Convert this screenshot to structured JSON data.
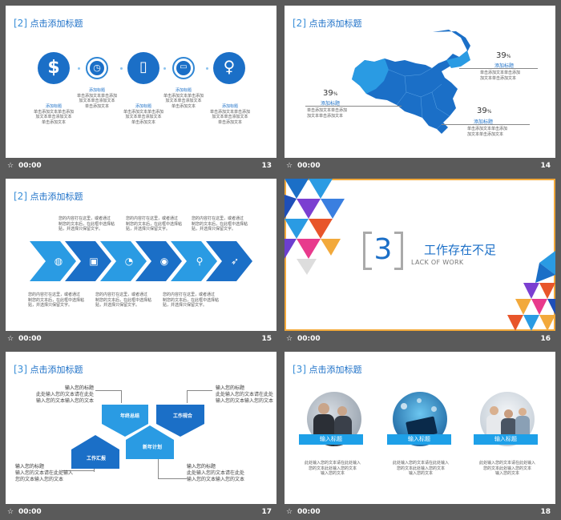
{
  "slides": [
    {
      "number": "13",
      "time": "00:00",
      "title_bracket": "[2]",
      "title_text": "点击添加标题",
      "icons": [
        "dollar-icon",
        "clock-icon",
        "phone-icon",
        "monitor-icon",
        "lightbulb-icon"
      ],
      "item_title": "添加标题",
      "item_text_1": "单击添加文本单击添加",
      "item_text_2": "加文本单击添加文本",
      "item_text_3": "单击添加文本"
    },
    {
      "number": "14",
      "time": "00:00",
      "title_bracket": "[2]",
      "title_text": "点击添加标题",
      "map_color": "#1b6fc7",
      "callouts": [
        {
          "value": "39",
          "unit": "%",
          "label": "添加标题",
          "text_1": "单击添加文本单击添加",
          "text_2": "加文本单击添加文本"
        },
        {
          "value": "39",
          "unit": "%",
          "label": "添加标题",
          "text_1": "单击添加文本单击添加",
          "text_2": "加文本单击添加文本"
        },
        {
          "value": "39",
          "unit": "%",
          "label": "添加标题",
          "text_1": "单击添加文本单击添加",
          "text_2": "加文本单击添加文本"
        }
      ]
    },
    {
      "number": "15",
      "time": "00:00",
      "title_bracket": "[2]",
      "title_text": "点击添加标题",
      "icons": [
        "globe-icon",
        "lock-icon",
        "timer-icon",
        "pin-icon",
        "search-icon",
        "rocket-icon"
      ],
      "para_1": "您的内容打在这里，或者通过",
      "para_2": "制您的文本后，在此框中选择粘",
      "para_3": "贴，并选择只保留文字。"
    },
    {
      "number": "16",
      "time": "00:00",
      "section_number": "3",
      "section_title": "工作存在不足",
      "section_subtitle": "LACK OF WORK"
    },
    {
      "number": "17",
      "time": "00:00",
      "title_bracket": "[3]",
      "title_text": "点击添加标题",
      "shapes": [
        "年终总结",
        "工作规合",
        "工作汇报",
        "新年计划"
      ],
      "callout_title": "输入您的标题",
      "callout_text_1": "此处输入您的文本请在此处",
      "callout_text_2": "输入您的文本输入您的文本",
      "callout_text_3": "输入您的文本请在此处输入",
      "callout_text_4": "您的文本输入您的文本"
    },
    {
      "number": "18",
      "time": "00:00",
      "title_bracket": "[3]",
      "title_text": "点击添加标题",
      "cards": [
        {
          "label": "输入标题",
          "text_1": "此处输入您的文本请在此处输入",
          "text_2": "您的文本此处输入您的文本",
          "text_3": "输入您的文本"
        },
        {
          "label": "输入标题",
          "text_1": "此处输入您的文本请在此处输入",
          "text_2": "您的文本此处输入您的文本",
          "text_3": "输入您的文本"
        },
        {
          "label": "输入标题",
          "text_1": "此处输入您的文本请在此处输入",
          "text_2": "您的文本此处输入您的文本",
          "text_3": "输入您的文本"
        }
      ]
    }
  ]
}
